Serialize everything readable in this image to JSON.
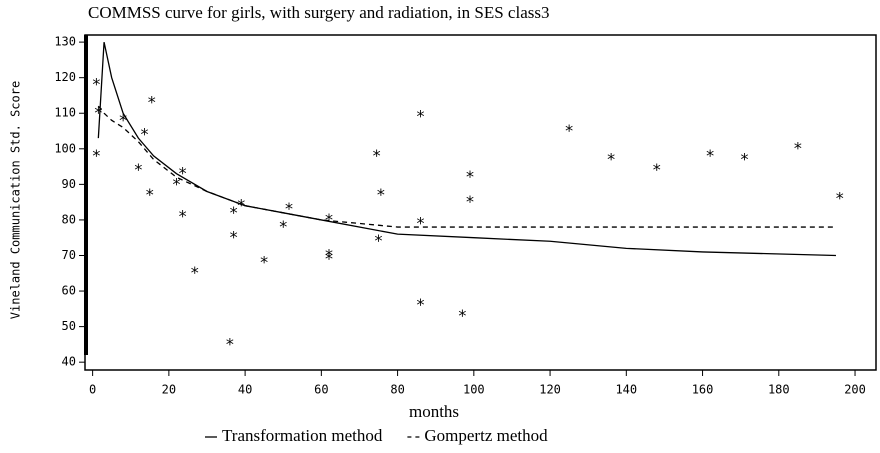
{
  "chart_data": {
    "type": "line",
    "title": "COMMSS curve for girls, with surgery and radiation, in SES class3",
    "x_label": "months",
    "y_label": "Vineland Communication Std. Score",
    "x": [
      1.5,
      3,
      5,
      8,
      12,
      16,
      22,
      30,
      40,
      50,
      60,
      80,
      100,
      120,
      140,
      160,
      195
    ],
    "series": [
      {
        "name": "Transformation method",
        "color": "#000000",
        "dash": false,
        "values": [
          103,
          130,
          120,
          110,
          103,
          98,
          93,
          88,
          84,
          82,
          80,
          76,
          75,
          74,
          72,
          71,
          70
        ]
      },
      {
        "name": "Gompertz method",
        "color": "#000000",
        "dash": true,
        "values": [
          112,
          110,
          108,
          106,
          102,
          97,
          92,
          88,
          84,
          82,
          80,
          78,
          78,
          78,
          78,
          78,
          78
        ]
      }
    ],
    "points": {
      "x": [
        1,
        1.5,
        1,
        8,
        15.5,
        13.6,
        12,
        15,
        23.6,
        22,
        23.6,
        26.8,
        37,
        39,
        37,
        36,
        45,
        50,
        51.5,
        62,
        62,
        62,
        74.5,
        75.6,
        75,
        86,
        86,
        86,
        97,
        99,
        99,
        125,
        136,
        148,
        162,
        171,
        185,
        196
      ],
      "y": [
        119,
        111,
        99,
        109,
        114,
        105,
        95,
        88,
        94,
        91,
        82,
        66,
        83,
        85,
        76,
        46,
        69,
        79,
        84,
        81,
        71,
        70,
        99,
        88,
        75,
        110,
        57,
        80,
        54,
        86,
        93,
        106,
        98,
        95,
        99,
        98,
        101,
        87
      ]
    },
    "xlim": [
      -2,
      205.5
    ],
    "ylim": [
      37.8,
      132
    ],
    "xticks": [
      0,
      20,
      40,
      60,
      80,
      100,
      120,
      140,
      160,
      180,
      200
    ],
    "yticks": [
      40,
      50,
      60,
      70,
      80,
      90,
      100,
      110,
      120,
      130
    ]
  }
}
